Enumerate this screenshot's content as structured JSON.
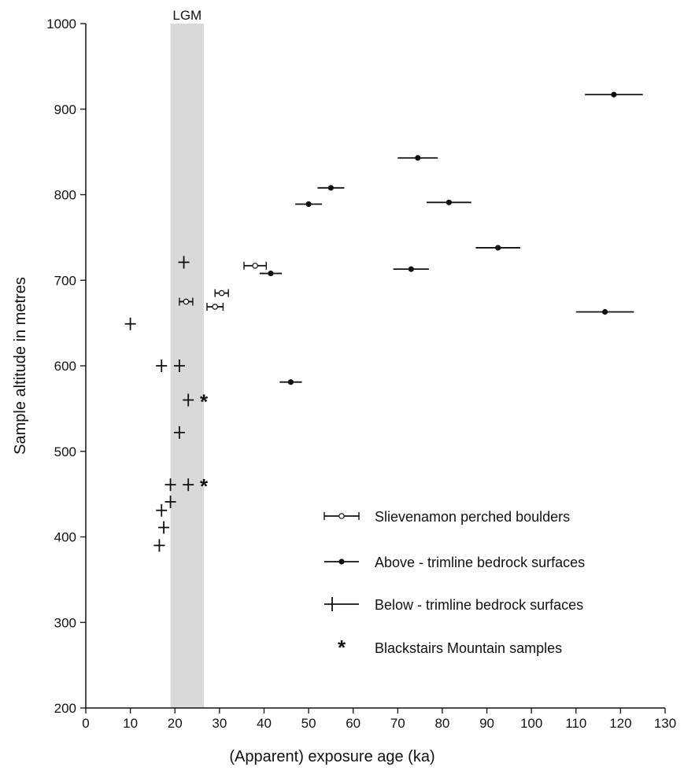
{
  "chart_data": {
    "type": "scatter",
    "title": "",
    "xlabel": "(Apparent) exposure age (ka)",
    "ylabel": "Sample altitude in metres",
    "xlim": [
      0,
      130
    ],
    "ylim": [
      200,
      1000
    ],
    "xticks": [
      0,
      10,
      20,
      30,
      40,
      50,
      60,
      70,
      80,
      90,
      100,
      110,
      120,
      130
    ],
    "yticks": [
      200,
      300,
      400,
      500,
      600,
      700,
      800,
      900,
      1000
    ],
    "grid": false,
    "legend_position": "bottom-right",
    "band": {
      "label": "LGM",
      "x_range": [
        19,
        26.5
      ],
      "color": "#d9d9d9"
    },
    "series": [
      {
        "name": "Slievenamon perched boulders",
        "marker": "open-circle-errorbar",
        "points": [
          {
            "x": 38,
            "y": 717,
            "xerr": 2.5
          },
          {
            "x": 30.5,
            "y": 685,
            "xerr": 1.5
          },
          {
            "x": 22.5,
            "y": 675,
            "xerr": 1.5
          },
          {
            "x": 29,
            "y": 669,
            "xerr": 1.8
          }
        ]
      },
      {
        "name": "Above - trimline bedrock surfaces",
        "marker": "filled-dot-errorbar",
        "points": [
          {
            "x": 118.5,
            "y": 917,
            "xerr": 6.5
          },
          {
            "x": 74.5,
            "y": 843,
            "xerr": 4.5
          },
          {
            "x": 55,
            "y": 808,
            "xerr": 3
          },
          {
            "x": 50,
            "y": 789,
            "xerr": 3
          },
          {
            "x": 81.5,
            "y": 791,
            "xerr": 5
          },
          {
            "x": 92.5,
            "y": 738,
            "xerr": 5
          },
          {
            "x": 73,
            "y": 713,
            "xerr": 4
          },
          {
            "x": 41.5,
            "y": 708,
            "xerr": 2.5
          },
          {
            "x": 116.5,
            "y": 663,
            "xerr": 6.5
          },
          {
            "x": 46,
            "y": 581,
            "xerr": 2.5
          }
        ]
      },
      {
        "name": "Below - trimline bedrock surfaces",
        "marker": "plus",
        "points": [
          {
            "x": 22,
            "y": 721
          },
          {
            "x": 10,
            "y": 649
          },
          {
            "x": 17,
            "y": 600
          },
          {
            "x": 21,
            "y": 600
          },
          {
            "x": 23,
            "y": 560
          },
          {
            "x": 21,
            "y": 522
          },
          {
            "x": 19,
            "y": 461
          },
          {
            "x": 23,
            "y": 461
          },
          {
            "x": 19,
            "y": 441
          },
          {
            "x": 17,
            "y": 431
          },
          {
            "x": 17.5,
            "y": 411
          },
          {
            "x": 16.5,
            "y": 390
          }
        ]
      },
      {
        "name": "Blackstairs Mountain samples",
        "marker": "asterisk",
        "points": [
          {
            "x": 26.5,
            "y": 560
          },
          {
            "x": 26.5,
            "y": 461
          }
        ]
      }
    ]
  }
}
